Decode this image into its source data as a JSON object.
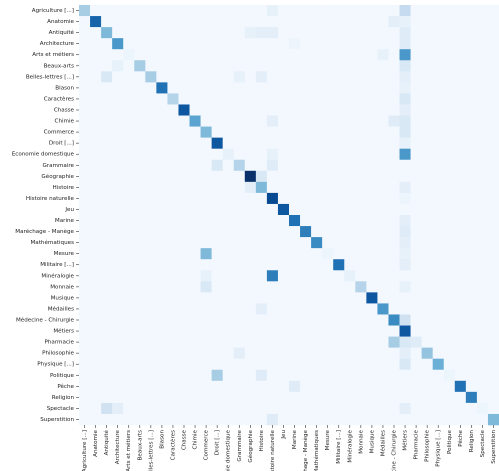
{
  "chart_data": {
    "type": "heatmap",
    "categories": [
      "Agriculture [...]",
      "Anatomie",
      "Antiquité",
      "Architecture",
      "Arts et métiers",
      "Beaux-arts",
      "Belles-lettres [...]",
      "Blason",
      "Caractères",
      "Chasse",
      "Chimie",
      "Commerce",
      "Droit [...]",
      "Economie domestique",
      "Grammaire",
      "Géographie",
      "Histoire",
      "Histoire naturelle",
      "Jeu",
      "Marine",
      "Maréchage - Manège",
      "Mathématiques",
      "Mesure",
      "Militaire [...]",
      "Minéralogie",
      "Monnaie",
      "Musique",
      "Médailles",
      "Médecine - Chirurgie",
      "Métiers",
      "Pharmacie",
      "Philosophie",
      "Physique [...]",
      "Politique",
      "Pêche",
      "Religion",
      "Spectacle",
      "Superstition"
    ],
    "colormap": [
      "#f7fbff",
      "#deebf7",
      "#c6dbef",
      "#9ecae1",
      "#6baed6",
      "#4292c6",
      "#2171b5",
      "#08519c",
      "#08306b"
    ],
    "values": [
      [
        35,
        2,
        2,
        2,
        2,
        2,
        2,
        2,
        2,
        2,
        2,
        2,
        2,
        2,
        2,
        2,
        2,
        8,
        2,
        2,
        2,
        2,
        2,
        2,
        2,
        2,
        2,
        2,
        2,
        25,
        2,
        2,
        2,
        2,
        2,
        2,
        2,
        2
      ],
      [
        2,
        80,
        2,
        2,
        2,
        2,
        2,
        2,
        2,
        2,
        2,
        2,
        2,
        2,
        2,
        2,
        2,
        2,
        2,
        2,
        2,
        2,
        2,
        2,
        2,
        2,
        2,
        2,
        10,
        8,
        2,
        2,
        2,
        2,
        2,
        2,
        2,
        2
      ],
      [
        2,
        2,
        45,
        2,
        2,
        2,
        2,
        2,
        2,
        2,
        2,
        2,
        2,
        2,
        2,
        8,
        10,
        10,
        2,
        2,
        2,
        2,
        2,
        2,
        2,
        2,
        2,
        2,
        2,
        12,
        2,
        2,
        2,
        2,
        2,
        2,
        2,
        2
      ],
      [
        2,
        2,
        2,
        60,
        2,
        2,
        2,
        2,
        2,
        2,
        2,
        2,
        2,
        2,
        2,
        2,
        2,
        2,
        2,
        5,
        2,
        2,
        2,
        2,
        2,
        2,
        2,
        2,
        2,
        12,
        2,
        2,
        2,
        2,
        2,
        2,
        2,
        2
      ],
      [
        2,
        2,
        2,
        2,
        5,
        2,
        2,
        2,
        2,
        2,
        2,
        2,
        2,
        2,
        2,
        2,
        2,
        2,
        2,
        2,
        2,
        2,
        2,
        2,
        2,
        2,
        2,
        8,
        2,
        60,
        2,
        2,
        2,
        2,
        2,
        2,
        2,
        2
      ],
      [
        2,
        2,
        2,
        8,
        2,
        35,
        2,
        2,
        2,
        2,
        2,
        2,
        2,
        2,
        2,
        2,
        2,
        2,
        2,
        2,
        2,
        2,
        2,
        2,
        2,
        2,
        2,
        2,
        2,
        15,
        2,
        2,
        2,
        2,
        2,
        2,
        2,
        2
      ],
      [
        2,
        2,
        15,
        2,
        2,
        2,
        35,
        2,
        2,
        2,
        2,
        2,
        2,
        2,
        8,
        2,
        10,
        2,
        2,
        2,
        2,
        2,
        2,
        2,
        2,
        2,
        2,
        2,
        2,
        10,
        2,
        2,
        2,
        2,
        2,
        2,
        2,
        2
      ],
      [
        2,
        2,
        2,
        2,
        2,
        2,
        2,
        75,
        2,
        2,
        2,
        2,
        2,
        2,
        2,
        2,
        2,
        2,
        2,
        2,
        2,
        2,
        2,
        2,
        2,
        2,
        2,
        2,
        2,
        8,
        2,
        2,
        2,
        2,
        2,
        2,
        2,
        2
      ],
      [
        2,
        2,
        2,
        2,
        2,
        2,
        2,
        2,
        30,
        2,
        2,
        2,
        2,
        2,
        2,
        2,
        2,
        2,
        2,
        2,
        2,
        2,
        2,
        2,
        2,
        2,
        2,
        2,
        2,
        15,
        2,
        2,
        2,
        2,
        2,
        2,
        2,
        2
      ],
      [
        2,
        2,
        2,
        2,
        2,
        2,
        2,
        2,
        2,
        85,
        2,
        2,
        2,
        2,
        2,
        2,
        2,
        2,
        2,
        2,
        2,
        2,
        2,
        2,
        2,
        2,
        2,
        2,
        2,
        10,
        2,
        2,
        2,
        2,
        2,
        2,
        2,
        2
      ],
      [
        2,
        2,
        2,
        2,
        2,
        2,
        2,
        2,
        2,
        2,
        55,
        2,
        2,
        2,
        2,
        2,
        2,
        10,
        2,
        2,
        2,
        2,
        2,
        2,
        2,
        2,
        2,
        2,
        12,
        15,
        2,
        2,
        2,
        2,
        2,
        2,
        2,
        2
      ],
      [
        2,
        2,
        2,
        2,
        2,
        2,
        2,
        2,
        2,
        2,
        2,
        45,
        2,
        2,
        2,
        2,
        2,
        2,
        2,
        2,
        2,
        2,
        2,
        2,
        2,
        2,
        2,
        2,
        2,
        15,
        2,
        2,
        2,
        2,
        2,
        2,
        2,
        2
      ],
      [
        2,
        2,
        2,
        2,
        2,
        2,
        2,
        2,
        2,
        2,
        2,
        2,
        85,
        2,
        2,
        2,
        2,
        2,
        2,
        2,
        2,
        2,
        2,
        2,
        2,
        2,
        2,
        2,
        2,
        8,
        2,
        2,
        2,
        2,
        2,
        2,
        2,
        2
      ],
      [
        2,
        2,
        2,
        2,
        2,
        2,
        2,
        2,
        2,
        2,
        2,
        2,
        2,
        8,
        2,
        2,
        2,
        8,
        2,
        2,
        2,
        2,
        2,
        2,
        2,
        2,
        2,
        2,
        2,
        60,
        2,
        2,
        2,
        2,
        2,
        2,
        2,
        2
      ],
      [
        2,
        2,
        2,
        2,
        2,
        2,
        2,
        2,
        2,
        2,
        2,
        2,
        15,
        2,
        30,
        2,
        2,
        12,
        2,
        2,
        2,
        2,
        2,
        2,
        2,
        2,
        2,
        2,
        2,
        2,
        2,
        2,
        2,
        2,
        2,
        2,
        2,
        2
      ],
      [
        2,
        2,
        2,
        2,
        2,
        2,
        2,
        2,
        2,
        2,
        2,
        2,
        2,
        2,
        2,
        100,
        15,
        2,
        2,
        2,
        2,
        2,
        2,
        2,
        2,
        2,
        2,
        2,
        2,
        2,
        2,
        2,
        2,
        2,
        2,
        2,
        2,
        2
      ],
      [
        2,
        2,
        2,
        2,
        2,
        2,
        2,
        2,
        2,
        2,
        2,
        2,
        2,
        2,
        2,
        10,
        45,
        2,
        2,
        2,
        2,
        2,
        2,
        2,
        2,
        2,
        2,
        2,
        2,
        10,
        2,
        2,
        2,
        2,
        2,
        2,
        2,
        2
      ],
      [
        2,
        2,
        2,
        2,
        2,
        2,
        2,
        2,
        2,
        2,
        2,
        2,
        2,
        2,
        2,
        2,
        2,
        90,
        2,
        2,
        2,
        2,
        2,
        2,
        2,
        2,
        2,
        2,
        2,
        5,
        2,
        2,
        2,
        2,
        2,
        2,
        2,
        2
      ],
      [
        2,
        2,
        2,
        2,
        2,
        2,
        2,
        2,
        2,
        2,
        2,
        2,
        2,
        2,
        2,
        2,
        2,
        2,
        85,
        2,
        2,
        2,
        2,
        2,
        2,
        2,
        2,
        2,
        2,
        2,
        2,
        2,
        2,
        2,
        2,
        2,
        2,
        2
      ],
      [
        2,
        2,
        2,
        2,
        2,
        2,
        2,
        2,
        2,
        2,
        2,
        2,
        2,
        2,
        2,
        2,
        2,
        2,
        2,
        75,
        2,
        2,
        2,
        2,
        2,
        2,
        2,
        2,
        2,
        10,
        2,
        2,
        2,
        2,
        2,
        2,
        2,
        2
      ],
      [
        2,
        2,
        2,
        2,
        2,
        2,
        2,
        2,
        2,
        2,
        2,
        2,
        2,
        2,
        2,
        2,
        2,
        2,
        2,
        2,
        70,
        2,
        2,
        2,
        2,
        2,
        2,
        2,
        2,
        12,
        2,
        2,
        2,
        2,
        2,
        2,
        2,
        2
      ],
      [
        2,
        2,
        2,
        2,
        2,
        2,
        2,
        2,
        2,
        2,
        2,
        2,
        2,
        2,
        2,
        2,
        2,
        2,
        2,
        2,
        2,
        65,
        2,
        2,
        2,
        2,
        2,
        2,
        2,
        10,
        2,
        2,
        2,
        2,
        2,
        2,
        2,
        2
      ],
      [
        2,
        2,
        2,
        2,
        2,
        2,
        2,
        2,
        2,
        2,
        2,
        45,
        2,
        2,
        2,
        2,
        2,
        2,
        2,
        2,
        2,
        2,
        5,
        2,
        2,
        2,
        2,
        2,
        2,
        8,
        2,
        2,
        2,
        2,
        2,
        2,
        2,
        2
      ],
      [
        2,
        2,
        2,
        2,
        2,
        2,
        2,
        2,
        2,
        2,
        2,
        2,
        2,
        2,
        2,
        2,
        2,
        2,
        2,
        2,
        2,
        2,
        2,
        75,
        2,
        2,
        2,
        2,
        2,
        10,
        2,
        2,
        2,
        2,
        2,
        2,
        2,
        2
      ],
      [
        2,
        2,
        2,
        2,
        2,
        2,
        2,
        2,
        2,
        2,
        2,
        8,
        2,
        2,
        2,
        2,
        2,
        70,
        2,
        2,
        2,
        2,
        2,
        2,
        8,
        2,
        2,
        2,
        2,
        2,
        2,
        2,
        2,
        2,
        2,
        2,
        2,
        2
      ],
      [
        2,
        2,
        2,
        2,
        2,
        2,
        2,
        2,
        2,
        2,
        2,
        15,
        2,
        2,
        2,
        2,
        2,
        2,
        2,
        2,
        2,
        2,
        2,
        2,
        2,
        30,
        2,
        2,
        2,
        8,
        2,
        2,
        2,
        2,
        2,
        2,
        2,
        2
      ],
      [
        2,
        2,
        2,
        2,
        2,
        2,
        2,
        2,
        2,
        2,
        2,
        2,
        2,
        2,
        2,
        2,
        2,
        2,
        2,
        2,
        2,
        2,
        2,
        2,
        2,
        2,
        85,
        2,
        2,
        2,
        2,
        2,
        2,
        2,
        2,
        2,
        2,
        2
      ],
      [
        2,
        2,
        2,
        2,
        2,
        2,
        2,
        2,
        2,
        2,
        2,
        2,
        2,
        2,
        2,
        2,
        10,
        2,
        2,
        2,
        2,
        2,
        2,
        2,
        2,
        2,
        2,
        60,
        2,
        2,
        2,
        2,
        2,
        2,
        2,
        2,
        2,
        2
      ],
      [
        2,
        2,
        2,
        2,
        2,
        2,
        2,
        2,
        2,
        2,
        2,
        2,
        2,
        2,
        2,
        2,
        2,
        2,
        2,
        2,
        2,
        2,
        2,
        2,
        2,
        2,
        2,
        2,
        65,
        20,
        2,
        2,
        2,
        2,
        2,
        2,
        2,
        2
      ],
      [
        2,
        2,
        2,
        2,
        2,
        2,
        2,
        2,
        2,
        2,
        2,
        2,
        2,
        2,
        2,
        2,
        2,
        2,
        2,
        2,
        2,
        2,
        2,
        2,
        2,
        2,
        2,
        2,
        2,
        85,
        2,
        2,
        2,
        2,
        2,
        2,
        2,
        2
      ],
      [
        2,
        2,
        2,
        2,
        2,
        2,
        2,
        2,
        2,
        2,
        2,
        2,
        2,
        2,
        2,
        2,
        2,
        2,
        2,
        2,
        2,
        2,
        2,
        2,
        2,
        2,
        2,
        2,
        35,
        15,
        12,
        2,
        2,
        2,
        2,
        2,
        2,
        2
      ],
      [
        2,
        2,
        2,
        2,
        2,
        2,
        2,
        2,
        2,
        2,
        2,
        2,
        2,
        2,
        10,
        2,
        2,
        2,
        2,
        2,
        2,
        2,
        2,
        2,
        2,
        2,
        2,
        2,
        2,
        10,
        2,
        40,
        2,
        2,
        2,
        2,
        2,
        2
      ],
      [
        2,
        2,
        2,
        2,
        2,
        2,
        2,
        2,
        2,
        2,
        2,
        2,
        2,
        2,
        2,
        2,
        2,
        2,
        2,
        2,
        2,
        2,
        2,
        2,
        2,
        2,
        2,
        2,
        2,
        15,
        2,
        2,
        50,
        2,
        2,
        2,
        2,
        2
      ],
      [
        2,
        2,
        2,
        2,
        2,
        2,
        2,
        2,
        2,
        2,
        2,
        2,
        35,
        2,
        2,
        2,
        12,
        2,
        2,
        2,
        2,
        2,
        2,
        2,
        2,
        2,
        2,
        2,
        2,
        2,
        2,
        2,
        2,
        5,
        2,
        2,
        2,
        2
      ],
      [
        2,
        2,
        2,
        2,
        2,
        2,
        2,
        2,
        2,
        2,
        2,
        2,
        2,
        2,
        2,
        2,
        2,
        2,
        2,
        12,
        2,
        2,
        2,
        2,
        2,
        2,
        2,
        2,
        2,
        2,
        2,
        2,
        2,
        2,
        75,
        2,
        2,
        2
      ],
      [
        2,
        2,
        2,
        2,
        2,
        2,
        2,
        2,
        2,
        2,
        2,
        2,
        2,
        2,
        2,
        2,
        2,
        2,
        2,
        2,
        2,
        2,
        2,
        2,
        2,
        2,
        2,
        2,
        2,
        2,
        2,
        2,
        2,
        2,
        2,
        70,
        2,
        2
      ],
      [
        2,
        2,
        20,
        10,
        2,
        2,
        2,
        2,
        2,
        2,
        2,
        2,
        2,
        2,
        2,
        2,
        2,
        2,
        2,
        2,
        2,
        2,
        2,
        2,
        2,
        2,
        2,
        2,
        2,
        10,
        2,
        2,
        2,
        2,
        2,
        2,
        5,
        2
      ],
      [
        2,
        2,
        2,
        2,
        2,
        2,
        2,
        2,
        2,
        2,
        2,
        2,
        2,
        2,
        2,
        2,
        2,
        12,
        2,
        2,
        2,
        2,
        2,
        2,
        2,
        2,
        2,
        2,
        2,
        2,
        2,
        2,
        2,
        2,
        2,
        2,
        2,
        45
      ]
    ]
  }
}
